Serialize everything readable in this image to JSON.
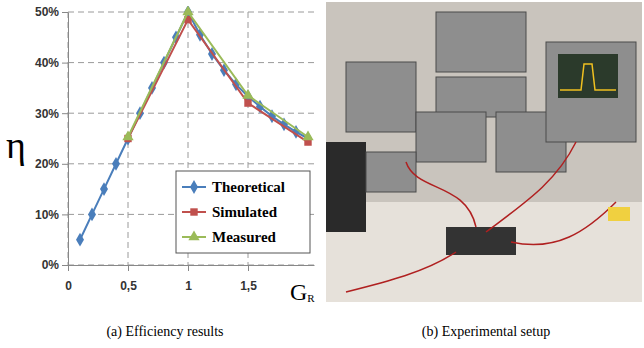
{
  "chart_data": {
    "type": "line",
    "x_label": "GR",
    "y_label": "η",
    "series": [
      {
        "name": "Theoretical",
        "color": "#4a7ebb",
        "marker": "diamond",
        "line_style": "solid",
        "x": [
          0.1,
          0.2,
          0.3,
          0.4,
          0.5,
          0.6,
          0.7,
          0.8,
          0.9,
          1.0,
          1.1,
          1.2,
          1.3,
          1.4,
          1.5,
          1.6,
          1.7,
          1.8,
          1.9,
          2.0
        ],
        "values": [
          5,
          10,
          15,
          20,
          25,
          30,
          35,
          40,
          45,
          50,
          45.5,
          41.7,
          38.5,
          35.7,
          33.3,
          31.3,
          29.4,
          27.8,
          26.3,
          25
        ]
      },
      {
        "name": "Simulated",
        "color": "#c0504d",
        "marker": "square",
        "line_style": "solid",
        "x": [
          0.5,
          1.0,
          1.5,
          2.0
        ],
        "values": [
          25,
          48.5,
          32,
          24.3
        ]
      },
      {
        "name": "Measured",
        "color": "#9bbb59",
        "marker": "triangle",
        "line_style": "solid",
        "x": [
          0.5,
          1.0,
          1.5,
          2.0
        ],
        "values": [
          25.3,
          50,
          33.5,
          25.3
        ]
      }
    ],
    "xlim": [
      0,
      2.05
    ],
    "xticks": [
      0,
      {
        "value": 0.5,
        "label": "0,5"
      },
      1,
      {
        "value": 1.5,
        "label": "1,5"
      }
    ],
    "ylim": [
      0,
      50
    ],
    "yticks": [
      {
        "value": 0,
        "label": "0%"
      },
      {
        "value": 10,
        "label": "10%"
      },
      {
        "value": 20,
        "label": "20%"
      },
      {
        "value": 30,
        "label": "30%"
      },
      {
        "value": 40,
        "label": "40%"
      },
      {
        "value": 50,
        "label": "50%"
      }
    ],
    "grid": true,
    "legend": "lower right"
  },
  "figure": {
    "captions": [
      "(a) Efficiency results",
      "(b) Experimental setup"
    ]
  }
}
